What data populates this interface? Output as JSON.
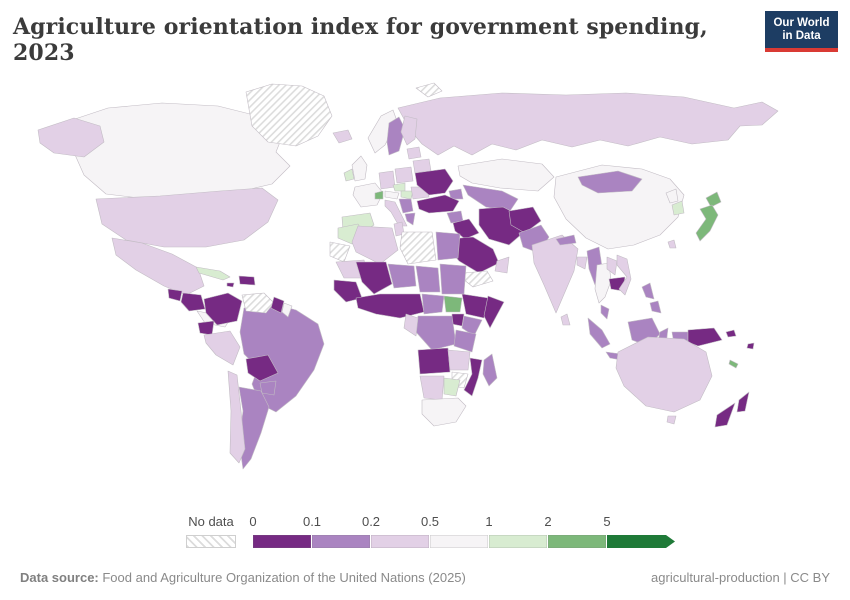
{
  "title": "Agriculture orientation index for government spending, 2023",
  "logo": {
    "line1": "Our World",
    "line2": "in Data"
  },
  "legend": {
    "no_data_label": "No data",
    "tick_labels": [
      "0",
      "0.1",
      "0.2",
      "0.5",
      "1",
      "2",
      "5"
    ],
    "bin_colors": [
      "#762a83",
      "#aa84c1",
      "#e2d0e6",
      "#f6f4f6",
      "#d8ecd1",
      "#7db87a",
      "#1f7a38"
    ],
    "no_data_hatch_color": "#dcdcdc"
  },
  "footer": {
    "source_label": "Data source:",
    "source_text": " Food and Agriculture Organization of the United Nations (2025)",
    "right_text": "agricultural-production | CC BY"
  },
  "colors": {
    "logo_navy": "#1d3d63",
    "logo_red": "#d93a34",
    "border": "#c2bcc4"
  },
  "chart_data": {
    "type": "choropleth",
    "metric": "Agriculture orientation index for government spending",
    "year": 2023,
    "bins": [
      "0-0.1",
      "0.1-0.2",
      "0.2-0.5",
      "0.5-1",
      "1-2",
      "2-5",
      "5+"
    ],
    "regions": {
      "greenland": "no-data",
      "svalbard": "no-data",
      "iceland": "0.2-0.5",
      "canada": "0.5-1",
      "alaska": "0.2-0.5",
      "united-states": "0.2-0.5",
      "mexico": "0.2-0.5",
      "guatemala": "0-0.1",
      "honduras-nicaragua": "0-0.1",
      "costa-rica-panama": "0.5-1",
      "cuba": "1-2",
      "jamaica": "0-0.1",
      "hispaniola": "0-0.1",
      "colombia": "0-0.1",
      "venezuela": "no-data",
      "guyana": "0-0.1",
      "suriname": "0.5-1",
      "ecuador": "0-0.1",
      "peru": "0.2-0.5",
      "brazil": "0.1-0.2",
      "bolivia": "0-0.1",
      "paraguay": "0.1-0.2",
      "chile": "0.2-0.5",
      "argentina": "0.1-0.2",
      "norway": "0.5-1",
      "sweden": "0.1-0.2",
      "finland": "0.2-0.5",
      "baltics": "0.2-0.5",
      "united-kingdom": "0.5-1",
      "ireland": "1-2",
      "france": "0.5-1",
      "spain": "1-2",
      "germany": "0.2-0.5",
      "poland": "0.2-0.5",
      "czechia": "1-2",
      "austria": "0.5-1",
      "switzerland": "2-5",
      "italy": "0.2-0.5",
      "hungary": "1-2",
      "balkans": "0.1-0.2",
      "greece": "0.1-0.2",
      "romania": "0.2-0.5",
      "belarus": "0.2-0.5",
      "ukraine": "0-0.1",
      "russia": "0.2-0.5",
      "kazakhstan": "0.5-1",
      "uzbekistan-turkmenistan": "0.1-0.2",
      "caucasus": "0.1-0.2",
      "turkey": "0-0.1",
      "syria": "0.1-0.2",
      "iraq": "0-0.1",
      "iran": "0-0.1",
      "saudi-arabia": "0-0.1",
      "yemen": "no-data",
      "oman": "0.2-0.5",
      "afghanistan": "0-0.1",
      "pakistan": "0.1-0.2",
      "india": "0.2-0.5",
      "nepal": "0.1-0.2",
      "bangladesh": "0.2-0.5",
      "sri-lanka": "0.2-0.5",
      "myanmar": "0.1-0.2",
      "thailand": "0.5-1",
      "laos": "0.2-0.5",
      "cambodia": "0-0.1",
      "vietnam": "0.2-0.5",
      "malaysia-peninsula": "0.1-0.2",
      "borneo": "0.1-0.2",
      "sumatra": "0.1-0.2",
      "java": "0.1-0.2",
      "sulawesi": "0.1-0.2",
      "philippines-north": "0.1-0.2",
      "philippines-south": "0.1-0.2",
      "china": "0.5-1",
      "mongolia": "0.1-0.2",
      "north-korea": "0.5-1",
      "south-korea": "1-2",
      "japan-hokkaido": "2-5",
      "japan-main": "2-5",
      "taiwan": "0.2-0.5",
      "west-papua": "0.1-0.2",
      "papua-new-guinea": "0-0.1",
      "solomon-islands": "0-0.1",
      "australia": "0.2-0.5",
      "tasmania": "0.2-0.5",
      "new-zealand-north": "0-0.1",
      "new-zealand-south": "0-0.1",
      "fiji": "0-0.1",
      "new-caledonia": "2-5",
      "morocco": "1-2",
      "western-sahara": "no-data",
      "algeria": "0.2-0.5",
      "tunisia": "0.2-0.5",
      "libya": "no-data",
      "egypt": "0.1-0.2",
      "mauritania": "0.2-0.5",
      "mali": "0-0.1",
      "niger": "0.1-0.2",
      "chad": "0.1-0.2",
      "sudan": "0.1-0.2",
      "senegal-guinea": "0-0.1",
      "west-africa-coast": "0-0.1",
      "cameroon-car": "0.1-0.2",
      "south-sudan": "2-5",
      "ethiopia": "0-0.1",
      "somalia": "0-0.1",
      "uganda": "0-0.1",
      "kenya": "0.1-0.2",
      "dr-congo": "0.1-0.2",
      "gabon-congo": "0.2-0.5",
      "tanzania": "0.1-0.2",
      "angola": "0-0.1",
      "zambia": "0.2-0.5",
      "mozambique": "0-0.1",
      "zimbabwe": "no-data",
      "namibia": "0.2-0.5",
      "botswana": "1-2",
      "south-africa": "0.5-1",
      "madagascar": "0.1-0.2"
    }
  }
}
